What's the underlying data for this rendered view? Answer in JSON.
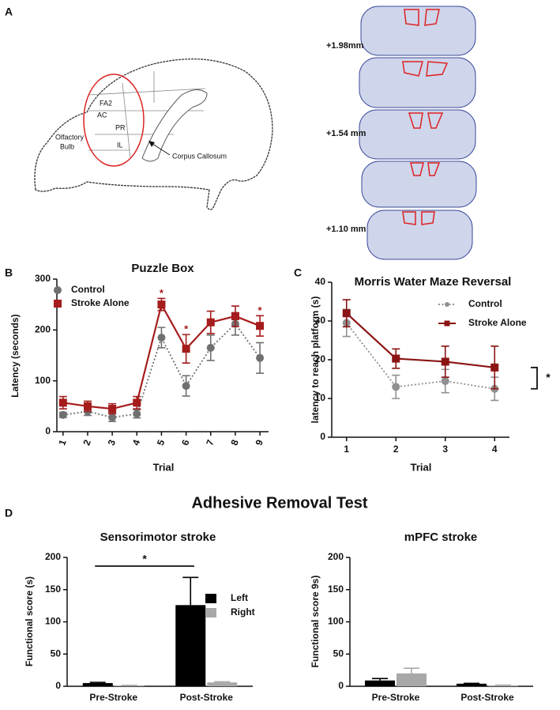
{
  "panel_labels": [
    "A",
    "B",
    "C",
    "D"
  ],
  "diagram": {
    "regions": [
      "FA2",
      "AC",
      "PR",
      "IL"
    ],
    "olfactory_bulb": [
      "Olfactory",
      "Bulb"
    ],
    "corpus_callosum": "Corpus Callosum",
    "slice_levels": [
      "+1.98mm",
      "+1.54 mm",
      "+1.10 mm"
    ]
  },
  "group_title": "Adhesive Removal Test",
  "chart_data": [
    {
      "type": "line",
      "title": "Puzzle Box",
      "xlabel": "Trial",
      "ylabel": "Latency (seconds)",
      "x": [
        1,
        2,
        3,
        4,
        5,
        6,
        7,
        8,
        9
      ],
      "xlim": [
        0.75,
        9.35
      ],
      "xticks": [
        1,
        2,
        3,
        4,
        5,
        6,
        7,
        8,
        9
      ],
      "ylim": [
        0,
        300
      ],
      "yticks": [
        0,
        100,
        200,
        300
      ],
      "series": [
        {
          "name": "Control",
          "color": "#707070",
          "marker": "circle",
          "linestyle": "dotted",
          "values": [
            33,
            40,
            28,
            35,
            185,
            90,
            165,
            212,
            145
          ],
          "errors": [
            5,
            8,
            8,
            8,
            20,
            20,
            25,
            22,
            30
          ]
        },
        {
          "name": "Stroke Alone",
          "color": "#a51c1c",
          "marker": "square",
          "linestyle": "solid",
          "values": [
            57,
            50,
            45,
            57,
            250,
            163,
            215,
            227,
            208
          ],
          "errors": [
            12,
            10,
            10,
            12,
            12,
            28,
            22,
            20,
            20
          ]
        }
      ],
      "annotations": [
        {
          "x": 5,
          "label": "*"
        },
        {
          "x": 6,
          "label": "*"
        },
        {
          "x": 9,
          "label": "*"
        }
      ]
    },
    {
      "type": "line",
      "title": "Morris Water Maze Reversal",
      "xlabel": "Trial",
      "ylabel": "latency to reach platform (s)",
      "x": [
        1,
        2,
        3,
        4
      ],
      "xlim": [
        0.7,
        4.3
      ],
      "xticks": [
        1,
        2,
        3,
        4
      ],
      "ylim": [
        0,
        40
      ],
      "yticks": [
        0,
        10,
        20,
        30,
        40
      ],
      "series": [
        {
          "name": "Control",
          "color": "#909090",
          "marker": "circle",
          "linestyle": "dotted",
          "values": [
            29.5,
            13,
            14.5,
            12.5
          ],
          "errors": [
            3.5,
            3,
            3,
            3
          ]
        },
        {
          "name": "Stroke Alone",
          "color": "#8b1414",
          "marker": "square",
          "linestyle": "solid",
          "values": [
            32,
            20.3,
            19.5,
            18
          ],
          "errors": [
            3.5,
            2.5,
            4,
            5.5
          ]
        }
      ],
      "annotations": [
        {
          "label": "*"
        }
      ]
    },
    {
      "type": "bar",
      "title": "Sensorimotor stroke",
      "ylabel": "Functional score (s)",
      "categories": [
        "Pre-Stroke",
        "Post-Stroke"
      ],
      "ylim": [
        0,
        200
      ],
      "yticks": [
        0,
        50,
        100,
        150,
        200
      ],
      "series": [
        {
          "name": "Left",
          "color": "#000000",
          "values": [
            5,
            126
          ],
          "errors": [
            1,
            43
          ]
        },
        {
          "name": "Right",
          "color": "#a8a8a8",
          "values": [
            1,
            6
          ],
          "errors": [
            0.5,
            1
          ]
        }
      ],
      "annotations": [
        {
          "label": "*"
        }
      ]
    },
    {
      "type": "bar",
      "title": "mPFC stroke",
      "ylabel": "Functional score 9s)",
      "categories": [
        "Pre-Stroke",
        "Post-Stroke"
      ],
      "ylim": [
        0,
        200
      ],
      "yticks": [
        0,
        50,
        100,
        150,
        200
      ],
      "series": [
        {
          "name": "Left",
          "color": "#000000",
          "values": [
            9,
            4
          ],
          "errors": [
            3,
            0.5
          ]
        },
        {
          "name": "Right",
          "color": "#a8a8a8",
          "values": [
            20,
            1.5
          ],
          "errors": [
            8,
            0.3
          ]
        }
      ]
    }
  ]
}
